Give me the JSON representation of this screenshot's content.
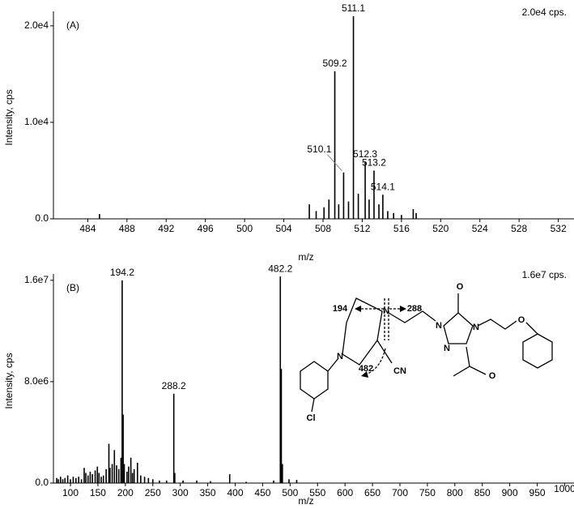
{
  "chart_data": [
    {
      "type": "bar",
      "panel_label": "(A)",
      "scale_label": "2.0e4 cps.",
      "x_label": "m/z",
      "y_label": "Intensity, cps",
      "color": "#000000",
      "x": [
        485.2,
        506.6,
        507.3,
        508.1,
        508.6,
        509.2,
        509.6,
        510.1,
        510.6,
        511.1,
        511.6,
        512.3,
        512.7,
        513.2,
        513.7,
        514.1,
        514.6,
        515.2,
        516.0,
        517.2,
        517.5
      ],
      "values": [
        500,
        1500,
        800,
        1200,
        2000,
        15300,
        1500,
        4800,
        1800,
        21000,
        2600,
        5900,
        2000,
        5000,
        1500,
        2500,
        800,
        600,
        400,
        1000,
        600
      ],
      "x_labels": [
        null,
        null,
        null,
        null,
        null,
        "509.2",
        null,
        "510.1",
        null,
        "511.1",
        null,
        "512.3",
        null,
        "513.2",
        null,
        "514.1",
        null,
        null,
        null,
        null,
        null
      ],
      "xlim": [
        480.5,
        533.6
      ],
      "ylim": [
        0,
        21500
      ],
      "xticks": [
        484,
        488,
        492,
        496,
        500,
        504,
        508,
        512,
        516,
        520,
        524,
        528,
        532
      ],
      "yticks": [
        {
          "value": 0,
          "label": "0.0"
        },
        {
          "value": 10000,
          "label": "1.0e4"
        },
        {
          "value": 20000,
          "label": "2.0e4"
        }
      ]
    },
    {
      "type": "bar",
      "panel_label": "(B)",
      "scale_label": "1.6e7 cps.",
      "x_label": "m/z",
      "y_label": "Intensity, cps",
      "color": "#000000",
      "x": [
        75,
        78,
        82,
        86,
        90,
        95,
        100,
        105,
        110,
        115,
        120,
        125,
        128,
        132,
        136,
        140,
        145,
        149,
        152,
        156,
        160,
        165,
        170,
        172,
        176,
        180,
        184,
        188,
        192,
        194.2,
        196,
        198,
        203,
        206,
        210,
        213,
        216,
        222,
        228,
        235,
        242,
        250,
        262,
        275,
        288.2,
        290,
        305,
        330,
        355,
        390,
        420,
        470,
        482.2,
        484,
        486,
        498,
        512
      ],
      "values": [
        400000,
        300000,
        500000,
        300000,
        400000,
        600000,
        300000,
        500000,
        400000,
        500000,
        300000,
        1200000,
        800000,
        600000,
        900000,
        700000,
        1000000,
        1300000,
        800000,
        500000,
        600000,
        1100000,
        3100000,
        1200000,
        1500000,
        2600000,
        1400000,
        1100000,
        2000000,
        16000000,
        5400000,
        1500000,
        900000,
        1300000,
        2000000,
        800000,
        1100000,
        1600000,
        600000,
        500000,
        400000,
        300000,
        200000,
        200000,
        7050000,
        800000,
        200000,
        200000,
        150000,
        700000,
        100000,
        200000,
        16300000,
        9000000,
        1500000,
        300000,
        250000
      ],
      "x_labels": [
        null,
        null,
        null,
        null,
        null,
        null,
        null,
        null,
        null,
        null,
        null,
        null,
        null,
        null,
        null,
        null,
        null,
        null,
        null,
        null,
        null,
        null,
        null,
        null,
        null,
        null,
        null,
        null,
        null,
        "194.2",
        null,
        null,
        null,
        null,
        null,
        null,
        null,
        null,
        null,
        null,
        null,
        null,
        null,
        null,
        "288.2",
        null,
        null,
        null,
        null,
        null,
        null,
        null,
        "482.2",
        null,
        null,
        null,
        null
      ],
      "xlim": [
        69,
        1017
      ],
      "ylim": [
        0,
        16500000
      ],
      "xticks": [
        100,
        150,
        200,
        250,
        300,
        350,
        400,
        450,
        500,
        550,
        600,
        650,
        700,
        750,
        800,
        850,
        900,
        950,
        1000
      ],
      "yticks": [
        {
          "value": 0,
          "label": "0.0"
        },
        {
          "value": 8000000,
          "label": "8.0e6"
        },
        {
          "value": 16000000,
          "label": "1.6e7"
        }
      ],
      "annotations": [
        "194",
        "288",
        "482",
        "CN",
        "O",
        "O",
        "O",
        "N",
        "N",
        "N",
        "N",
        "N",
        "Cl"
      ]
    }
  ]
}
